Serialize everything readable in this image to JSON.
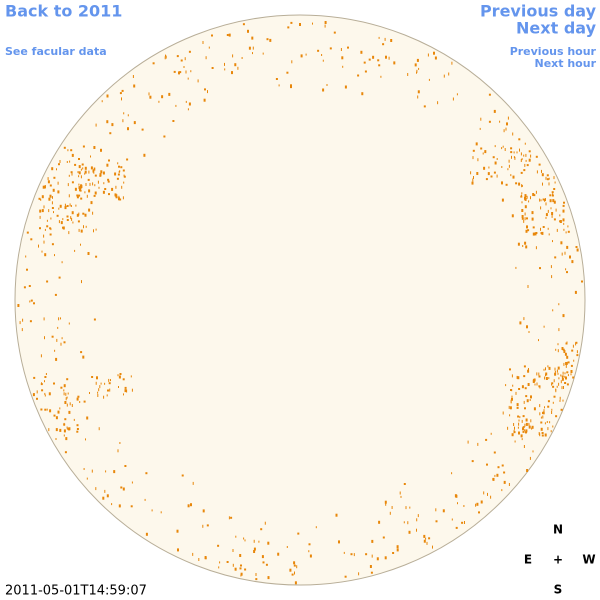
{
  "links": {
    "back": "Back to 2011",
    "facular": "See facular data",
    "previous_day": "Previous day",
    "next_day": "Next day",
    "previous_hour": "Previous hour",
    "next_hour": "Next hour"
  },
  "timestamp": "2011-05-01T14:59:07",
  "compass": {
    "north": "N",
    "east": "E",
    "center": "+",
    "west": "W",
    "south": "S"
  }
}
